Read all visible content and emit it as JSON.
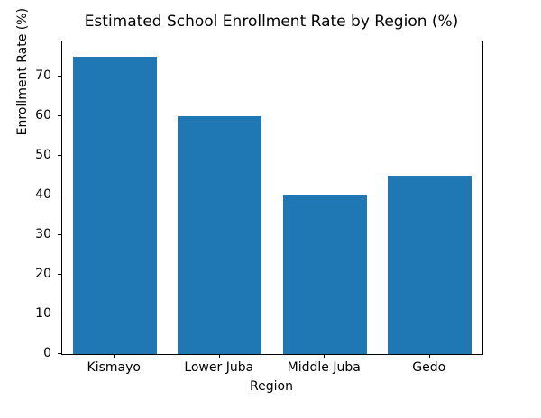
{
  "chart_data": {
    "type": "bar",
    "title": "Estimated School Enrollment Rate by Region (%)",
    "categories": [
      "Kismayo",
      "Lower Juba",
      "Middle Juba",
      "Gedo"
    ],
    "values": [
      75,
      60,
      40,
      45
    ],
    "xlabel": "Region",
    "ylabel": "Enrollment Rate (%)",
    "ylim": [
      0,
      78.75
    ],
    "yticks": [
      0,
      10,
      20,
      30,
      40,
      50,
      60,
      70
    ],
    "bar_color": "#1f77b4",
    "bar_rel_width": 0.8,
    "grid": false,
    "legend_position": "none"
  }
}
